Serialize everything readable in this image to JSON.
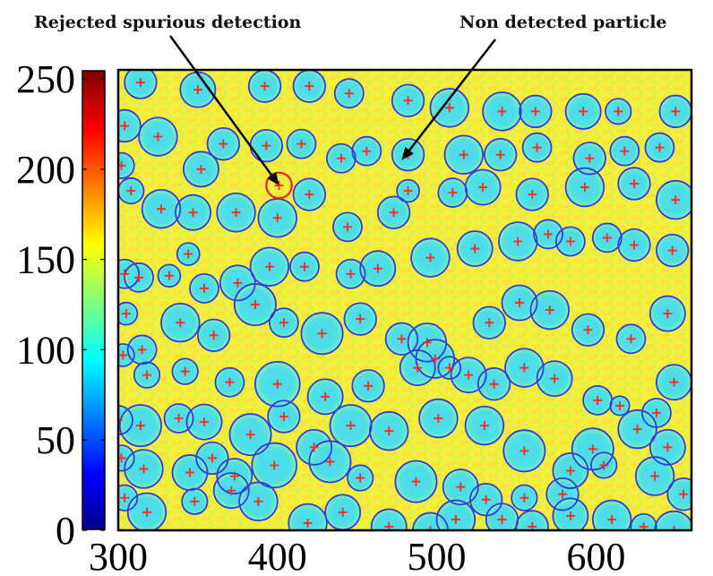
{
  "chart_data": {
    "type": "scatter",
    "title": "",
    "xlabel": "",
    "ylabel": "",
    "xlim": [
      300,
      660
    ],
    "ylim": [
      0,
      255
    ],
    "x_ticks": [
      "300",
      "400",
      "500",
      "600"
    ],
    "y_ticks": [
      "0",
      "50",
      "100",
      "150",
      "200",
      "250"
    ],
    "colorbar": {
      "label_ticks": [
        "0",
        "50",
        "100",
        "150",
        "200",
        "250"
      ],
      "colormap": "jet"
    },
    "annotations": [
      {
        "text": "Rejected spurious detection",
        "target": [
          401,
          191
        ]
      },
      {
        "text": "Non detected particle",
        "target": [
          478,
          205
        ]
      }
    ],
    "colors": {
      "detection_circle": "#2f3ee0",
      "rejected_circle": "#e8262b",
      "center_marker": "#ff2a10",
      "background": "#f0ef3a",
      "particle_fill": "#3fd8e6"
    },
    "detections": [
      [
        314,
        248,
        10
      ],
      [
        350,
        244,
        11
      ],
      [
        392,
        246,
        10
      ],
      [
        420,
        246,
        10
      ],
      [
        445,
        242,
        9
      ],
      [
        482,
        238,
        10
      ],
      [
        508,
        234,
        12
      ],
      [
        541,
        232,
        12
      ],
      [
        562,
        232,
        10
      ],
      [
        592,
        232,
        11
      ],
      [
        614,
        232,
        8
      ],
      [
        650,
        232,
        10
      ],
      [
        304,
        224,
        10
      ],
      [
        325,
        218,
        12
      ],
      [
        352,
        200,
        11
      ],
      [
        366,
        214,
        10
      ],
      [
        393,
        213,
        10
      ],
      [
        415,
        214,
        9
      ],
      [
        440,
        206,
        9
      ],
      [
        456,
        210,
        9
      ],
      [
        482,
        208,
        10
      ],
      [
        517,
        208,
        12
      ],
      [
        540,
        208,
        10
      ],
      [
        563,
        212,
        9
      ],
      [
        596,
        206,
        10
      ],
      [
        618,
        210,
        9
      ],
      [
        640,
        212,
        9
      ],
      [
        302,
        202,
        8
      ],
      [
        308,
        188,
        8
      ],
      [
        327,
        178,
        12
      ],
      [
        347,
        176,
        11
      ],
      [
        374,
        176,
        12
      ],
      [
        400,
        173,
        12
      ],
      [
        420,
        186,
        10
      ],
      [
        444,
        168,
        9
      ],
      [
        473,
        176,
        10
      ],
      [
        482,
        188,
        7
      ],
      [
        510,
        187,
        9
      ],
      [
        529,
        190,
        11
      ],
      [
        560,
        186,
        10
      ],
      [
        593,
        190,
        12
      ],
      [
        624,
        192,
        10
      ],
      [
        650,
        183,
        12
      ],
      [
        304,
        142,
        9
      ],
      [
        313,
        140,
        9
      ],
      [
        332,
        141,
        7
      ],
      [
        344,
        153,
        7
      ],
      [
        354,
        134,
        9
      ],
      [
        375,
        137,
        11
      ],
      [
        395,
        146,
        12
      ],
      [
        417,
        146,
        9
      ],
      [
        446,
        142,
        9
      ],
      [
        463,
        145,
        11
      ],
      [
        496,
        151,
        12
      ],
      [
        524,
        156,
        11
      ],
      [
        551,
        160,
        12
      ],
      [
        570,
        164,
        9
      ],
      [
        584,
        160,
        9
      ],
      [
        607,
        162,
        9
      ],
      [
        624,
        158,
        10
      ],
      [
        648,
        155,
        10
      ],
      [
        305,
        120,
        7
      ],
      [
        315,
        100,
        9
      ],
      [
        339,
        115,
        12
      ],
      [
        360,
        108,
        10
      ],
      [
        386,
        125,
        13
      ],
      [
        404,
        115,
        9
      ],
      [
        428,
        109,
        13
      ],
      [
        452,
        117,
        10
      ],
      [
        478,
        106,
        10
      ],
      [
        494,
        104,
        12
      ],
      [
        508,
        90,
        7
      ],
      [
        533,
        115,
        10
      ],
      [
        552,
        126,
        11
      ],
      [
        571,
        122,
        12
      ],
      [
        595,
        111,
        10
      ],
      [
        622,
        106,
        9
      ],
      [
        645,
        120,
        11
      ],
      [
        303,
        97,
        7
      ],
      [
        318,
        86,
        8
      ],
      [
        342,
        88,
        8
      ],
      [
        354,
        60,
        11
      ],
      [
        370,
        82,
        9
      ],
      [
        400,
        81,
        14
      ],
      [
        430,
        74,
        11
      ],
      [
        457,
        80,
        10
      ],
      [
        488,
        90,
        11
      ],
      [
        499,
        95,
        12
      ],
      [
        520,
        86,
        11
      ],
      [
        536,
        81,
        10
      ],
      [
        555,
        90,
        12
      ],
      [
        574,
        84,
        11
      ],
      [
        601,
        72,
        9
      ],
      [
        615,
        69,
        6
      ],
      [
        638,
        65,
        9
      ],
      [
        649,
        82,
        11
      ],
      [
        300,
        61,
        9
      ],
      [
        314,
        58,
        13
      ],
      [
        338,
        62,
        9
      ],
      [
        359,
        40,
        10
      ],
      [
        383,
        53,
        13
      ],
      [
        404,
        63,
        10
      ],
      [
        423,
        46,
        11
      ],
      [
        446,
        58,
        13
      ],
      [
        470,
        55,
        12
      ],
      [
        501,
        62,
        12
      ],
      [
        530,
        58,
        12
      ],
      [
        555,
        44,
        13
      ],
      [
        584,
        33,
        11
      ],
      [
        598,
        45,
        13
      ],
      [
        626,
        56,
        12
      ],
      [
        645,
        46,
        11
      ],
      [
        302,
        40,
        8
      ],
      [
        316,
        34,
        12
      ],
      [
        345,
        32,
        11
      ],
      [
        373,
        30,
        11
      ],
      [
        398,
        36,
        14
      ],
      [
        433,
        38,
        13
      ],
      [
        452,
        29,
        8
      ],
      [
        487,
        27,
        13
      ],
      [
        515,
        24,
        11
      ],
      [
        531,
        17,
        10
      ],
      [
        555,
        18,
        8
      ],
      [
        579,
        20,
        10
      ],
      [
        605,
        36,
        8
      ],
      [
        637,
        30,
        12
      ],
      [
        655,
        20,
        10
      ],
      [
        304,
        18,
        8
      ],
      [
        318,
        10,
        12
      ],
      [
        348,
        16,
        8
      ],
      [
        371,
        22,
        11
      ],
      [
        388,
        16,
        12
      ],
      [
        419,
        4,
        12
      ],
      [
        441,
        10,
        11
      ],
      [
        470,
        2,
        11
      ],
      [
        496,
        0,
        11
      ],
      [
        512,
        6,
        12
      ],
      [
        541,
        6,
        10
      ],
      [
        560,
        2,
        10
      ],
      [
        584,
        8,
        11
      ],
      [
        610,
        6,
        12
      ],
      [
        630,
        2,
        8
      ],
      [
        649,
        0,
        12
      ]
    ],
    "rejected": [
      [
        401,
        191,
        8
      ]
    ]
  }
}
